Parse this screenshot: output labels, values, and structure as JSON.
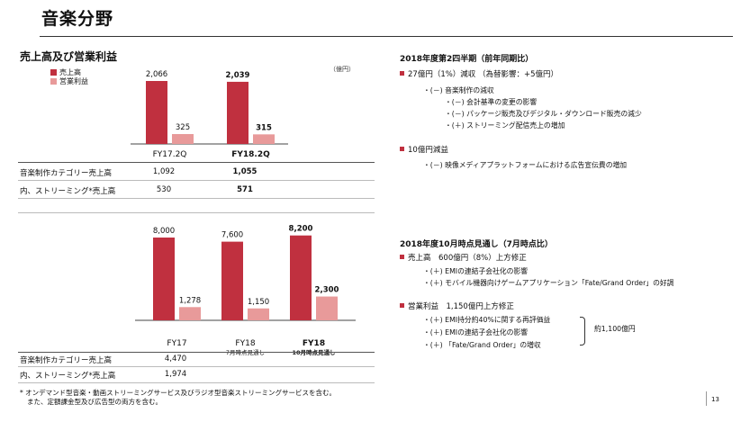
{
  "page": {
    "title": "音楽分野",
    "section_title": "売上高及び営業利益",
    "unit": "（億円）",
    "page_number": "13"
  },
  "legend": {
    "sales": "売上高",
    "op_income": "営業利益"
  },
  "colors": {
    "sales": "#c0303f",
    "op_income": "#e89a9a",
    "bullet": "#c0303f"
  },
  "chart_data": [
    {
      "type": "bar",
      "categories": [
        "FY17.2Q",
        "FY18.2Q"
      ],
      "series": [
        {
          "name": "売上高",
          "values": [
            2066,
            2039
          ]
        },
        {
          "name": "営業利益",
          "values": [
            325,
            315
          ]
        }
      ],
      "value_labels": [
        [
          "2,066",
          "2,039"
        ],
        [
          "325",
          "315"
        ]
      ],
      "bold_categories": [
        false,
        true
      ]
    },
    {
      "type": "bar",
      "categories": [
        "FY17",
        "FY18",
        "FY18"
      ],
      "category_sublabels": [
        "",
        "7月時点見通し",
        "10月時点見通し"
      ],
      "series": [
        {
          "name": "売上高",
          "values": [
            8000,
            7600,
            8200
          ]
        },
        {
          "name": "営業利益",
          "values": [
            1278,
            1150,
            2300
          ]
        }
      ],
      "value_labels": [
        [
          "8,000",
          "7,600",
          "8,200"
        ],
        [
          "1,278",
          "1,150",
          "2,300"
        ]
      ],
      "bold_categories": [
        false,
        false,
        true
      ]
    }
  ],
  "table1": {
    "rows": [
      {
        "label": "音楽制作カテゴリー売上高",
        "v1": "1,092",
        "v2": "1,055"
      },
      {
        "label": "内、ストリーミング*売上高",
        "v1": "530",
        "v2": "571"
      }
    ]
  },
  "table2": {
    "rows": [
      {
        "label": "音楽制作カテゴリー売上高",
        "v1": "4,470"
      },
      {
        "label": "内、ストリーミング*売上高",
        "v1": "1,974"
      }
    ]
  },
  "right_top": {
    "heading": "2018年度第2四半期（前年同期比）",
    "b1": "27億円（1%）減収 （為替影響：+5億円）",
    "b1_l1": "・(－) 音楽制作の減収",
    "b1_l2": "・(－) 会計基準の変更の影響",
    "b1_l3": "・(－) パッケージ販売及びデジタル・ダウンロード販売の減少",
    "b1_l4": "・(＋) ストリーミング配信売上の増加",
    "b2": "10億円減益",
    "b2_l1": "・(－) 映像メディアプラットフォームにおける広告宣伝費の増加"
  },
  "right_bottom": {
    "heading": "2018年度10月時点見通し（7月時点比）",
    "b1": "売上高　600億円（8%）上方修正",
    "b1_l1": "・(＋) EMIの連結子会社化の影響",
    "b1_l2": "・(＋) モバイル機器向けゲームアプリケーション「Fate/Grand Order」の好調",
    "b2": "営業利益　1,150億円上方修正",
    "b2_l1": "・(＋) EMI持分約40%に関する再評価益",
    "b2_l2": "・(＋) EMIの連結子会社化の影響",
    "b2_l3": "・(＋) 「Fate/Grand Order」の増収",
    "brace_note": "約1,100億円"
  },
  "footnote": {
    "line1": "* オンデマンド型音楽・動画ストリーミングサービス及びラジオ型音楽ストリーミングサービスを含む。",
    "line2": "また、定額課金型及び広告型の両方を含む。"
  }
}
